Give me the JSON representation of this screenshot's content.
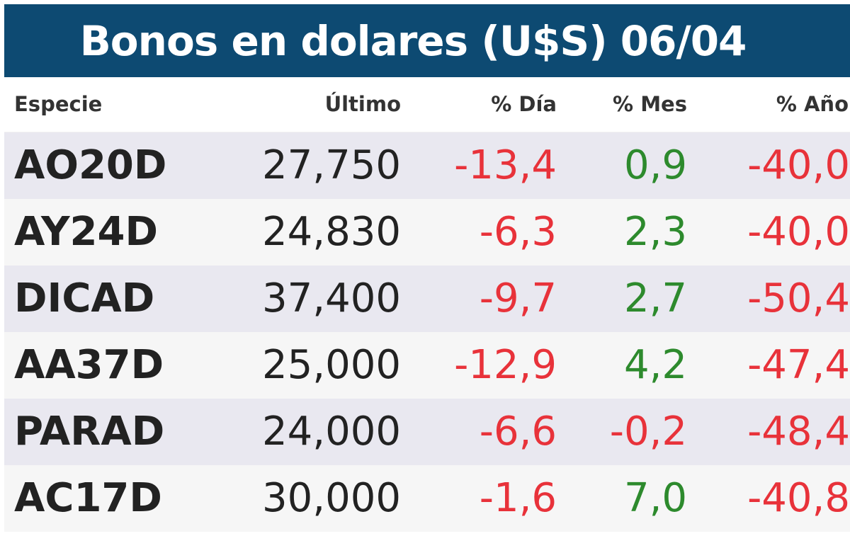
{
  "title": "Bonos en dolares (U$S) 06/04",
  "colors": {
    "title_bg": "#0d4a72",
    "row_odd": "#e9e8f0",
    "row_even": "#f6f6f6",
    "negative": "#e8323a",
    "positive": "#2d8a2d"
  },
  "headers": {
    "especie": "Especie",
    "ultimo": "Último",
    "dia": "% Día",
    "mes": "% Mes",
    "anio": "% Año"
  },
  "rows": [
    {
      "especie": "AO20D",
      "ultimo": "27,750",
      "dia": "-13,4",
      "mes": "0,9",
      "anio": "-40,0"
    },
    {
      "especie": "AY24D",
      "ultimo": "24,830",
      "dia": "-6,3",
      "mes": "2,3",
      "anio": "-40,0"
    },
    {
      "especie": "DICAD",
      "ultimo": "37,400",
      "dia": "-9,7",
      "mes": "2,7",
      "anio": "-50,4"
    },
    {
      "especie": "AA37D",
      "ultimo": "25,000",
      "dia": "-12,9",
      "mes": "4,2",
      "anio": "-47,4"
    },
    {
      "especie": "PARAD",
      "ultimo": "24,000",
      "dia": "-6,6",
      "mes": "-0,2",
      "anio": "-48,4"
    },
    {
      "especie": "AC17D",
      "ultimo": "30,000",
      "dia": "-1,6",
      "mes": "7,0",
      "anio": "-40,8"
    }
  ]
}
